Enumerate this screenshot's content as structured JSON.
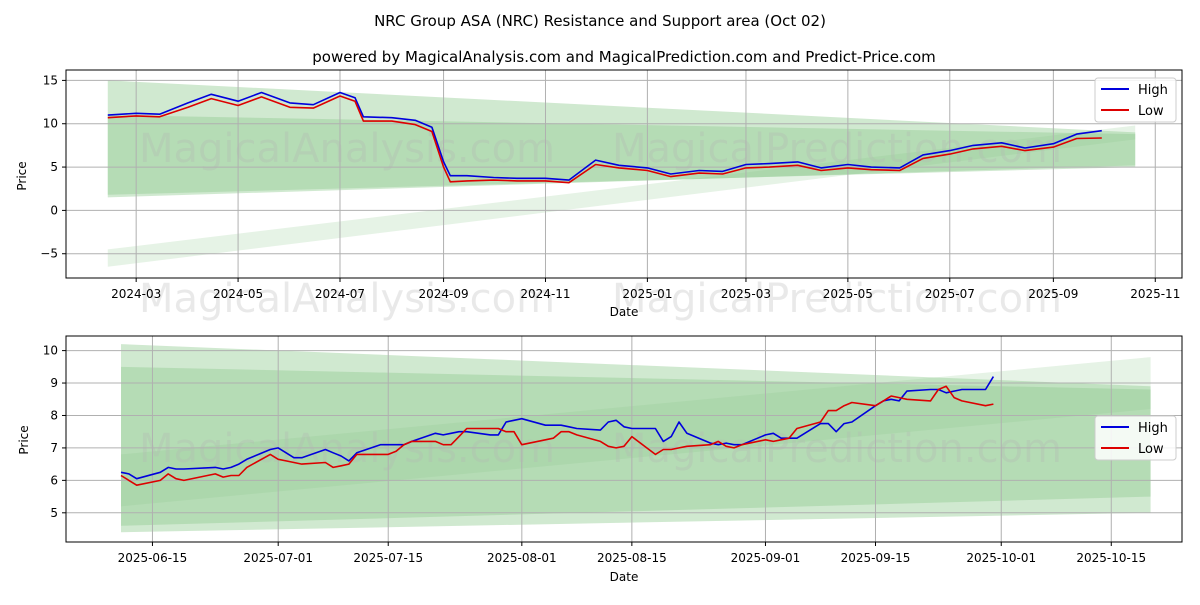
{
  "title": "NRC Group ASA (NRC) Resistance and Support area (Oct 02)",
  "subtitle": "powered by MagicalAnalysis.com and MagicalPrediction.com and Predict-Price.com",
  "watermark_left": "MagicalAnalysis.com",
  "watermark_right": "MagicalPrediction.com",
  "colors": {
    "high": "#0000dd",
    "low": "#dd0000",
    "band": "#8fca8f"
  },
  "chart_data": [
    {
      "type": "line",
      "xlabel": "Date",
      "ylabel": "Price",
      "x_ticks": [
        "2024-03",
        "2024-05",
        "2024-07",
        "2024-09",
        "2024-11",
        "2025-01",
        "2025-03",
        "2025-05",
        "2025-07",
        "2025-09",
        "2025-11"
      ],
      "y_ticks": [
        "−5",
        "0",
        "5",
        "10",
        "15"
      ],
      "ylim": [
        -7.8,
        16.2
      ],
      "xlim": [
        "2024-01-19",
        "2025-11-17"
      ],
      "grid": true,
      "legend": {
        "position": "top-right",
        "entries": [
          "High",
          "Low"
        ]
      },
      "series": [
        {
          "name": "High",
          "x": [
            "2024-02-13",
            "2024-03-01",
            "2024-03-15",
            "2024-04-01",
            "2024-04-15",
            "2024-05-01",
            "2024-05-15",
            "2024-06-01",
            "2024-06-15",
            "2024-07-01",
            "2024-07-10",
            "2024-07-15",
            "2024-08-01",
            "2024-08-15",
            "2024-08-25",
            "2024-09-01",
            "2024-09-05",
            "2024-09-15",
            "2024-10-01",
            "2024-10-15",
            "2024-11-01",
            "2024-11-15",
            "2024-12-01",
            "2024-12-15",
            "2025-01-01",
            "2025-01-15",
            "2025-02-01",
            "2025-02-15",
            "2025-03-01",
            "2025-03-15",
            "2025-04-01",
            "2025-04-15",
            "2025-05-01",
            "2025-05-15",
            "2025-06-01",
            "2025-06-15",
            "2025-07-01",
            "2025-07-15",
            "2025-08-01",
            "2025-08-15",
            "2025-09-01",
            "2025-09-15",
            "2025-09-30"
          ],
          "values": [
            11.0,
            11.2,
            11.1,
            12.4,
            13.4,
            12.6,
            13.6,
            12.4,
            12.2,
            13.6,
            13.0,
            10.8,
            10.7,
            10.4,
            9.6,
            5.6,
            4.0,
            4.0,
            3.8,
            3.7,
            3.7,
            3.5,
            5.8,
            5.2,
            4.9,
            4.2,
            4.6,
            4.5,
            5.3,
            5.4,
            5.6,
            4.9,
            5.3,
            5.0,
            4.9,
            6.4,
            6.9,
            7.5,
            7.8,
            7.2,
            7.7,
            8.8,
            9.2
          ]
        },
        {
          "name": "Low",
          "x": [
            "2024-02-13",
            "2024-03-01",
            "2024-03-15",
            "2024-04-01",
            "2024-04-15",
            "2024-05-01",
            "2024-05-15",
            "2024-06-01",
            "2024-06-15",
            "2024-07-01",
            "2024-07-10",
            "2024-07-15",
            "2024-08-01",
            "2024-08-15",
            "2024-08-25",
            "2024-09-01",
            "2024-09-05",
            "2024-09-15",
            "2024-10-01",
            "2024-10-15",
            "2024-11-01",
            "2024-11-15",
            "2024-12-01",
            "2024-12-15",
            "2025-01-01",
            "2025-01-15",
            "2025-02-01",
            "2025-02-15",
            "2025-03-01",
            "2025-03-15",
            "2025-04-01",
            "2025-04-15",
            "2025-05-01",
            "2025-05-15",
            "2025-06-01",
            "2025-06-15",
            "2025-07-01",
            "2025-07-15",
            "2025-08-01",
            "2025-08-15",
            "2025-09-01",
            "2025-09-15",
            "2025-09-30"
          ],
          "values": [
            10.7,
            10.9,
            10.8,
            11.9,
            12.9,
            12.1,
            13.1,
            11.9,
            11.8,
            13.2,
            12.6,
            10.3,
            10.3,
            9.9,
            9.1,
            5.0,
            3.3,
            3.4,
            3.5,
            3.4,
            3.4,
            3.2,
            5.3,
            4.9,
            4.6,
            3.9,
            4.3,
            4.2,
            4.9,
            5.0,
            5.2,
            4.6,
            4.9,
            4.7,
            4.6,
            6.0,
            6.5,
            7.1,
            7.4,
            6.9,
            7.3,
            8.3,
            8.35
          ]
        }
      ],
      "bands": [
        {
          "x": [
            "2024-02-13",
            "2025-10-20"
          ],
          "upper": [
            15.0,
            9.0
          ],
          "lower": [
            1.5,
            5.2
          ]
        },
        {
          "x": [
            "2024-02-13",
            "2025-10-20"
          ],
          "upper": [
            11.0,
            8.8
          ],
          "lower": [
            1.8,
            5.0
          ]
        },
        {
          "x": [
            "2024-02-13",
            "2025-10-20"
          ],
          "upper": [
            -4.5,
            9.8
          ],
          "lower": [
            -6.5,
            8.2
          ]
        }
      ]
    },
    {
      "type": "line",
      "xlabel": "Date",
      "ylabel": "Price",
      "x_ticks": [
        "2025-06-15",
        "2025-07-01",
        "2025-07-15",
        "2025-08-01",
        "2025-08-15",
        "2025-09-01",
        "2025-09-15",
        "2025-10-01",
        "2025-10-15"
      ],
      "y_ticks": [
        "5",
        "6",
        "7",
        "8",
        "9",
        "10"
      ],
      "ylim": [
        4.1,
        10.45
      ],
      "xlim": [
        "2025-06-04",
        "2025-10-24"
      ],
      "grid": true,
      "legend": {
        "position": "center-right",
        "entries": [
          "High",
          "Low"
        ]
      },
      "series": [
        {
          "name": "High",
          "x": [
            "2025-06-11",
            "2025-06-12",
            "2025-06-13",
            "2025-06-16",
            "2025-06-17",
            "2025-06-18",
            "2025-06-19",
            "2025-06-23",
            "2025-06-24",
            "2025-06-25",
            "2025-06-26",
            "2025-06-27",
            "2025-06-30",
            "2025-07-01",
            "2025-07-02",
            "2025-07-03",
            "2025-07-04",
            "2025-07-07",
            "2025-07-08",
            "2025-07-09",
            "2025-07-10",
            "2025-07-11",
            "2025-07-14",
            "2025-07-15",
            "2025-07-16",
            "2025-07-17",
            "2025-07-18",
            "2025-07-21",
            "2025-07-22",
            "2025-07-23",
            "2025-07-24",
            "2025-07-25",
            "2025-07-28",
            "2025-07-29",
            "2025-07-30",
            "2025-07-31",
            "2025-08-01",
            "2025-08-04",
            "2025-08-05",
            "2025-08-06",
            "2025-08-07",
            "2025-08-08",
            "2025-08-11",
            "2025-08-12",
            "2025-08-13",
            "2025-08-14",
            "2025-08-15",
            "2025-08-18",
            "2025-08-19",
            "2025-08-20",
            "2025-08-21",
            "2025-08-22",
            "2025-08-25",
            "2025-08-26",
            "2025-08-27",
            "2025-08-28",
            "2025-08-29",
            "2025-09-01",
            "2025-09-02",
            "2025-09-03",
            "2025-09-04",
            "2025-09-05",
            "2025-09-08",
            "2025-09-09",
            "2025-09-10",
            "2025-09-11",
            "2025-09-12",
            "2025-09-15",
            "2025-09-16",
            "2025-09-17",
            "2025-09-18",
            "2025-09-19",
            "2025-09-22",
            "2025-09-23",
            "2025-09-24",
            "2025-09-25",
            "2025-09-26",
            "2025-09-29",
            "2025-09-30"
          ],
          "values": [
            6.25,
            6.2,
            6.05,
            6.25,
            6.4,
            6.35,
            6.35,
            6.4,
            6.35,
            6.4,
            6.5,
            6.65,
            6.95,
            7.0,
            6.85,
            6.7,
            6.7,
            6.95,
            6.85,
            6.75,
            6.6,
            6.85,
            7.1,
            7.1,
            7.1,
            7.1,
            7.2,
            7.45,
            7.4,
            7.45,
            7.5,
            7.5,
            7.4,
            7.4,
            7.8,
            7.85,
            7.9,
            7.7,
            7.7,
            7.7,
            7.65,
            7.6,
            7.55,
            7.8,
            7.85,
            7.65,
            7.6,
            7.6,
            7.2,
            7.35,
            7.8,
            7.45,
            7.15,
            7.1,
            7.15,
            7.1,
            7.1,
            7.4,
            7.45,
            7.3,
            7.3,
            7.3,
            7.75,
            7.75,
            7.5,
            7.75,
            7.8,
            8.3,
            8.45,
            8.5,
            8.45,
            8.75,
            8.8,
            8.8,
            8.7,
            8.75,
            8.8,
            8.8,
            9.2
          ]
        },
        {
          "name": "Low",
          "x": [
            "2025-06-11",
            "2025-06-12",
            "2025-06-13",
            "2025-06-16",
            "2025-06-17",
            "2025-06-18",
            "2025-06-19",
            "2025-06-23",
            "2025-06-24",
            "2025-06-25",
            "2025-06-26",
            "2025-06-27",
            "2025-06-30",
            "2025-07-01",
            "2025-07-02",
            "2025-07-03",
            "2025-07-04",
            "2025-07-07",
            "2025-07-08",
            "2025-07-09",
            "2025-07-10",
            "2025-07-11",
            "2025-07-14",
            "2025-07-15",
            "2025-07-16",
            "2025-07-17",
            "2025-07-18",
            "2025-07-21",
            "2025-07-22",
            "2025-07-23",
            "2025-07-24",
            "2025-07-25",
            "2025-07-28",
            "2025-07-29",
            "2025-07-30",
            "2025-07-31",
            "2025-08-01",
            "2025-08-04",
            "2025-08-05",
            "2025-08-06",
            "2025-08-07",
            "2025-08-08",
            "2025-08-11",
            "2025-08-12",
            "2025-08-13",
            "2025-08-14",
            "2025-08-15",
            "2025-08-18",
            "2025-08-19",
            "2025-08-20",
            "2025-08-21",
            "2025-08-22",
            "2025-08-25",
            "2025-08-26",
            "2025-08-27",
            "2025-08-28",
            "2025-08-29",
            "2025-09-01",
            "2025-09-02",
            "2025-09-03",
            "2025-09-04",
            "2025-09-05",
            "2025-09-08",
            "2025-09-09",
            "2025-09-10",
            "2025-09-11",
            "2025-09-12",
            "2025-09-15",
            "2025-09-16",
            "2025-09-17",
            "2025-09-18",
            "2025-09-19",
            "2025-09-22",
            "2025-09-23",
            "2025-09-24",
            "2025-09-25",
            "2025-09-26",
            "2025-09-29",
            "2025-09-30"
          ],
          "values": [
            6.15,
            6.0,
            5.85,
            6.0,
            6.2,
            6.05,
            6.0,
            6.2,
            6.1,
            6.15,
            6.15,
            6.4,
            6.8,
            6.65,
            6.6,
            6.55,
            6.5,
            6.55,
            6.4,
            6.45,
            6.5,
            6.8,
            6.8,
            6.8,
            6.9,
            7.1,
            7.2,
            7.2,
            7.1,
            7.1,
            7.35,
            7.6,
            7.6,
            7.6,
            7.5,
            7.5,
            7.1,
            7.25,
            7.3,
            7.5,
            7.5,
            7.4,
            7.2,
            7.05,
            7.0,
            7.05,
            7.35,
            6.8,
            6.95,
            6.95,
            7.0,
            7.05,
            7.1,
            7.2,
            7.05,
            7.0,
            7.1,
            7.25,
            7.2,
            7.25,
            7.3,
            7.6,
            7.8,
            8.15,
            8.15,
            8.3,
            8.4,
            8.3,
            8.45,
            8.6,
            8.55,
            8.5,
            8.45,
            8.8,
            8.9,
            8.55,
            8.45,
            8.3,
            8.35
          ]
        }
      ],
      "bands": [
        {
          "x": [
            "2025-06-11",
            "2025-10-20"
          ],
          "upper": [
            10.2,
            8.9
          ],
          "lower": [
            4.4,
            5.0
          ]
        },
        {
          "x": [
            "2025-06-11",
            "2025-10-20"
          ],
          "upper": [
            9.5,
            8.8
          ],
          "lower": [
            4.6,
            5.5
          ]
        },
        {
          "x": [
            "2025-06-11",
            "2025-10-20"
          ],
          "upper": [
            6.8,
            9.8
          ],
          "lower": [
            5.2,
            8.2
          ]
        }
      ]
    }
  ]
}
